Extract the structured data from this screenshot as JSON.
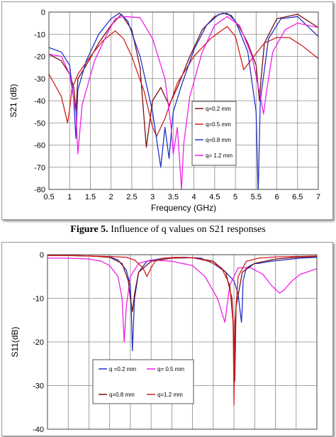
{
  "caption": {
    "label": "Figure 5.",
    "text": "Influence of q values on S21 responses"
  },
  "colors": {
    "blue": "#2433c8",
    "red": "#d42020",
    "darkred": "#7a1010",
    "magenta": "#f020e8"
  },
  "chart_data": [
    {
      "type": "line",
      "title": "",
      "xlabel": "Frequency (GHz)",
      "ylabel": "S21 (dB)",
      "xlim": [
        0.5,
        7
      ],
      "ylim": [
        -80,
        0
      ],
      "xticks": [
        "0.5",
        "1",
        "1.5",
        "2",
        "2.5",
        "3",
        "3.5",
        "4",
        "4.5",
        "5",
        "5.5",
        "6",
        "6.5",
        "7"
      ],
      "yticks": [
        "0",
        "-10",
        "-20",
        "-30",
        "-40",
        "-50",
        "-60",
        "-70",
        "-80"
      ],
      "legend_position": "lower-right",
      "series": [
        {
          "name": "q=0.2 mm",
          "color": "#7a1010",
          "x": [
            0.5,
            0.8,
            1.0,
            1.1,
            1.15,
            1.2,
            1.4,
            1.7,
            2.0,
            2.25,
            2.5,
            2.7,
            2.85,
            3.0,
            3.2,
            3.4,
            3.6,
            3.9,
            4.2,
            4.5,
            4.7,
            4.9,
            5.1,
            5.3,
            5.5,
            5.58,
            5.62,
            5.7,
            6.0,
            6.5,
            7.0
          ],
          "y": [
            -19,
            -22,
            -28,
            -34,
            -45,
            -30,
            -24,
            -14,
            -6,
            -1,
            -8,
            -25,
            -61,
            -40,
            -34,
            -42,
            -34,
            -20,
            -8,
            -2,
            -0.5,
            -1.5,
            -7,
            -14,
            -24,
            -40,
            -30,
            -14,
            -3,
            -1,
            -7
          ]
        },
        {
          "name": "q=0.5 mm",
          "color": "#d42020",
          "x": [
            0.5,
            0.8,
            0.95,
            1.0,
            1.05,
            1.2,
            1.5,
            1.8,
            2.0,
            2.1,
            2.3,
            2.5,
            2.8,
            3.0,
            3.1,
            3.3,
            3.6,
            4.0,
            4.4,
            4.8,
            5.0,
            5.2,
            5.4,
            5.7,
            6.0,
            6.3,
            6.6,
            7.0
          ],
          "y": [
            -28,
            -38,
            -50,
            -44,
            -35,
            -28,
            -20,
            -13,
            -10,
            -8.5,
            -12,
            -20,
            -36,
            -52,
            -56,
            -48,
            -32,
            -20,
            -12,
            -6.5,
            -11,
            -26,
            -21,
            -14,
            -11.5,
            -11.5,
            -15,
            -21
          ]
        },
        {
          "name": "q=0.8 mm",
          "color": "#2433c8",
          "x": [
            0.5,
            0.8,
            1.0,
            1.1,
            1.15,
            1.2,
            1.4,
            1.7,
            2.0,
            2.2,
            2.4,
            2.7,
            3.0,
            3.2,
            3.3,
            3.4,
            3.45,
            3.5,
            3.7,
            4.0,
            4.3,
            4.6,
            4.8,
            5.0,
            5.3,
            5.5,
            5.55,
            5.6,
            5.8,
            6.1,
            6.5,
            7.0
          ],
          "y": [
            -16,
            -18,
            -24,
            -40,
            -57,
            -35,
            -22,
            -10,
            -3,
            -0.5,
            -4,
            -20,
            -45,
            -70,
            -52,
            -66,
            -55,
            -45,
            -33,
            -17,
            -6,
            -1,
            -0.5,
            -4,
            -18,
            -45,
            -82,
            -40,
            -12,
            -3,
            -2,
            -11
          ]
        },
        {
          "name": "q= 1.2 mm",
          "color": "#f020e8",
          "x": [
            0.5,
            0.8,
            1.0,
            1.15,
            1.2,
            1.3,
            1.6,
            1.9,
            2.1,
            2.3,
            2.7,
            3.0,
            3.3,
            3.45,
            3.5,
            3.6,
            3.7,
            3.75,
            3.9,
            4.2,
            4.5,
            4.8,
            5.1,
            5.4,
            5.6,
            5.68,
            5.75,
            5.9,
            6.2,
            6.5,
            7.0
          ],
          "y": [
            -19,
            -20,
            -28,
            -45,
            -64,
            -42,
            -22,
            -10,
            -3,
            -2,
            -2.5,
            -12,
            -30,
            -52,
            -64,
            -52,
            -80,
            -60,
            -38,
            -18,
            -6,
            -2,
            -6,
            -20,
            -38,
            -46,
            -36,
            -18,
            -8,
            -5,
            -7
          ]
        }
      ]
    },
    {
      "type": "line",
      "title": "",
      "xlabel": "",
      "ylabel": "S11(dB)",
      "xlim": [
        0.5,
        7
      ],
      "ylim": [
        -40,
        0
      ],
      "yticks": [
        "0",
        "-10",
        "-20",
        "-30",
        "-40"
      ],
      "legend_position": "bottom-center",
      "series": [
        {
          "name": "q =0.2 mm",
          "color": "#2433c8",
          "x": [
            0.5,
            1.0,
            1.5,
            2.0,
            2.2,
            2.4,
            2.5,
            2.52,
            2.55,
            2.6,
            2.7,
            2.9,
            3.3,
            3.8,
            4.2,
            4.5,
            4.8,
            5.0,
            5.1,
            5.18,
            5.2,
            5.22,
            5.3,
            5.5,
            5.6,
            5.7,
            5.9,
            6.2,
            6.6,
            7.0
          ],
          "y": [
            -0.2,
            -0.2,
            -0.3,
            -0.5,
            -1.2,
            -3.5,
            -7,
            -12,
            -22,
            -10,
            -4,
            -1.5,
            -0.8,
            -0.6,
            -0.8,
            -2,
            -4,
            -6,
            -9,
            -15.5,
            -12,
            -6,
            -3,
            -2,
            -2,
            -1.8,
            -1.5,
            -1.2,
            -0.8,
            -0.6
          ]
        },
        {
          "name": "q= 0.5 mm",
          "color": "#f020e8",
          "x": [
            0.5,
            1.0,
            1.5,
            1.8,
            2.0,
            2.2,
            2.3,
            2.35,
            2.4,
            2.5,
            2.7,
            3.0,
            3.5,
            4.0,
            4.3,
            4.6,
            4.7,
            4.78,
            4.9,
            5.1,
            5.4,
            5.7,
            5.9,
            6.1,
            6.2,
            6.4,
            6.6,
            7.0
          ],
          "y": [
            -0.8,
            -0.8,
            -1,
            -1.5,
            -2.5,
            -5,
            -10,
            -20,
            -12,
            -5,
            -2,
            -1.2,
            -1.5,
            -2.5,
            -5,
            -10,
            -13,
            -15.5,
            -7,
            -3,
            -3,
            -4.5,
            -7,
            -8.8,
            -8.2,
            -6,
            -4.5,
            -3.2
          ]
        },
        {
          "name": "q=0.8 mm",
          "color": "#7a1010",
          "x": [
            0.5,
            1.0,
            1.5,
            2.0,
            2.3,
            2.45,
            2.5,
            2.55,
            2.6,
            2.7,
            3.0,
            3.5,
            4.0,
            4.5,
            4.8,
            4.95,
            5.0,
            5.02,
            5.05,
            5.2,
            5.5,
            6.0,
            6.5,
            7.0
          ],
          "y": [
            -0.2,
            -0.2,
            -0.3,
            -0.6,
            -2,
            -6,
            -10,
            -13,
            -9,
            -4,
            -1.5,
            -0.8,
            -0.7,
            -1.5,
            -4,
            -10,
            -20,
            -29,
            -12,
            -4,
            -2,
            -1,
            -0.6,
            -0.4
          ]
        },
        {
          "name": "q=1.2 mm",
          "color": "#d42020",
          "x": [
            0.5,
            1.0,
            1.5,
            2.0,
            2.4,
            2.6,
            2.8,
            2.9,
            3.0,
            3.1,
            3.3,
            3.6,
            4.0,
            4.4,
            4.7,
            4.9,
            4.98,
            5.0,
            5.02,
            5.1,
            5.3,
            5.6,
            6.0,
            6.5,
            7.0
          ],
          "y": [
            -0.2,
            -0.2,
            -0.3,
            -0.4,
            -0.6,
            -1.2,
            -3,
            -5,
            -3,
            -1.5,
            -0.8,
            -0.6,
            -0.7,
            -1.5,
            -3,
            -7,
            -16,
            -34.5,
            -16,
            -5,
            -1.5,
            -0.8,
            -0.5,
            -0.4,
            -0.3
          ]
        }
      ]
    }
  ]
}
